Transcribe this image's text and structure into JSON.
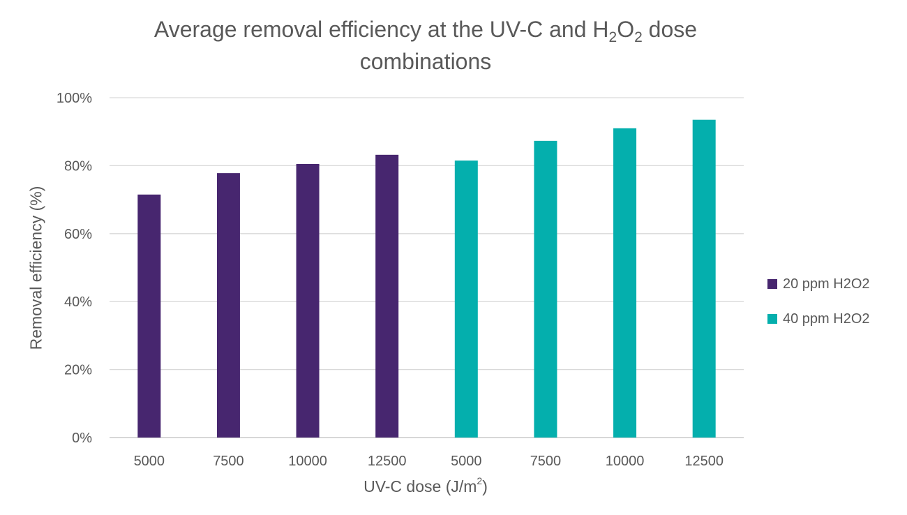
{
  "chart_data": {
    "type": "bar",
    "title_main": "Average removal efficiency at the UV-C and H",
    "title_sub1": "2",
    "title_mid": "O",
    "title_sub2": "2",
    "title_end": " dose",
    "title_line2": "combinations",
    "xlabel_main": "UV-C dose (J/m",
    "xlabel_sup": "2",
    "xlabel_end": ")",
    "ylabel": "Removal efficiency (%)",
    "categories": [
      "5000",
      "7500",
      "10000",
      "12500",
      "5000",
      "7500",
      "10000",
      "12500"
    ],
    "y_ticks": [
      "0%",
      "20%",
      "40%",
      "60%",
      "80%",
      "100%"
    ],
    "ylim": [
      0,
      100
    ],
    "grid": true,
    "legend_position": "right",
    "series": [
      {
        "name": "20 ppm H2O2",
        "color": "#47266F",
        "values": [
          71.5,
          77.8,
          80.5,
          83.2,
          null,
          null,
          null,
          null
        ]
      },
      {
        "name": "40 ppm H2O2",
        "color": "#04AFAD",
        "values": [
          null,
          null,
          null,
          null,
          81.5,
          87.3,
          91.0,
          93.5
        ]
      }
    ]
  }
}
